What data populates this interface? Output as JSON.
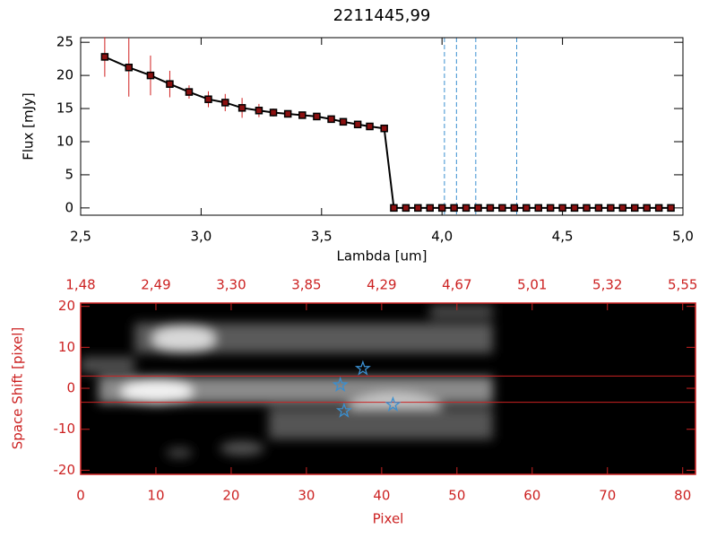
{
  "chart_data": [
    {
      "type": "line",
      "title": "2211445,99",
      "xlabel": "Lambda [um]",
      "ylabel": "Flux [mJy]",
      "xlim": [
        2.5,
        5.0
      ],
      "ylim": [
        -1.1,
        25.7
      ],
      "xticks": [
        {
          "value": 2.5,
          "label": "2,5"
        },
        {
          "value": 3.0,
          "label": "3,0"
        },
        {
          "value": 3.5,
          "label": "3,5"
        },
        {
          "value": 4.0,
          "label": "4,0"
        },
        {
          "value": 4.5,
          "label": "4,5"
        },
        {
          "value": 5.0,
          "label": "5,0"
        }
      ],
      "yticks": [
        0,
        5,
        10,
        15,
        20,
        25
      ],
      "color": "#000000",
      "marker_color": "#8b1010",
      "error_color": "#d02020",
      "x": [
        2.6,
        2.7,
        2.79,
        2.87,
        2.95,
        3.03,
        3.1,
        3.17,
        3.24,
        3.3,
        3.36,
        3.42,
        3.48,
        3.54,
        3.59,
        3.65,
        3.7,
        3.76,
        3.8,
        3.85,
        3.9,
        3.95,
        4.0,
        4.05,
        4.1,
        4.15,
        4.2,
        4.25,
        4.3,
        4.35,
        4.4,
        4.45,
        4.5,
        4.55,
        4.6,
        4.65,
        4.7,
        4.75,
        4.8,
        4.85,
        4.9,
        4.95
      ],
      "values": [
        22.8,
        21.2,
        20.0,
        18.7,
        17.5,
        16.4,
        15.9,
        15.1,
        14.7,
        14.4,
        14.2,
        14.0,
        13.8,
        13.4,
        13.0,
        12.6,
        12.3,
        12.0,
        0,
        0,
        0,
        0,
        0,
        0,
        0,
        0,
        0,
        0,
        0,
        0,
        0,
        0,
        0,
        0,
        0,
        0,
        0,
        0,
        0,
        0,
        0,
        0
      ],
      "errors": [
        3.0,
        4.4,
        3.0,
        2.0,
        1.0,
        1.2,
        1.3,
        1.5,
        1.0,
        0.6,
        0.5,
        0.4,
        0.4,
        0.4,
        0.4,
        0.4,
        0.4,
        0.4,
        0,
        0,
        0,
        0,
        0,
        0,
        0,
        0,
        0,
        0,
        0,
        0,
        0,
        0,
        0,
        0,
        0,
        0,
        0,
        0,
        0,
        0,
        0,
        0
      ],
      "vlines": [
        4.01,
        4.06,
        4.14,
        4.31
      ],
      "vline_color": "#3a8fd0"
    },
    {
      "type": "image",
      "xlabel": "Pixel",
      "ylabel": "Space Shift [pixel]",
      "color": "#cc2222",
      "xlim": [
        0,
        81.7
      ],
      "ylim": [
        -21,
        20.8
      ],
      "xticks": [
        0,
        10,
        20,
        30,
        40,
        50,
        60,
        70,
        80
      ],
      "yticks": [
        -20,
        -10,
        0,
        10,
        20
      ],
      "x2ticks": [
        {
          "value": 0,
          "label": "1,48"
        },
        {
          "value": 10,
          "label": "2,49"
        },
        {
          "value": 20,
          "label": "3,30"
        },
        {
          "value": 30,
          "label": "3,85"
        },
        {
          "value": 40,
          "label": "4,29"
        },
        {
          "value": 50,
          "label": "4,67"
        },
        {
          "value": 60,
          "label": "5,01"
        },
        {
          "value": 70,
          "label": "5,32"
        },
        {
          "value": 80,
          "label": "5,55"
        }
      ],
      "hlines": [
        3.0,
        -3.4
      ],
      "stars": {
        "color": "#3a8fd0",
        "x": [
          37.5,
          34.5,
          35.0,
          41.5
        ],
        "y": [
          4.8,
          0.8,
          -5.5,
          -4.0
        ]
      }
    }
  ]
}
